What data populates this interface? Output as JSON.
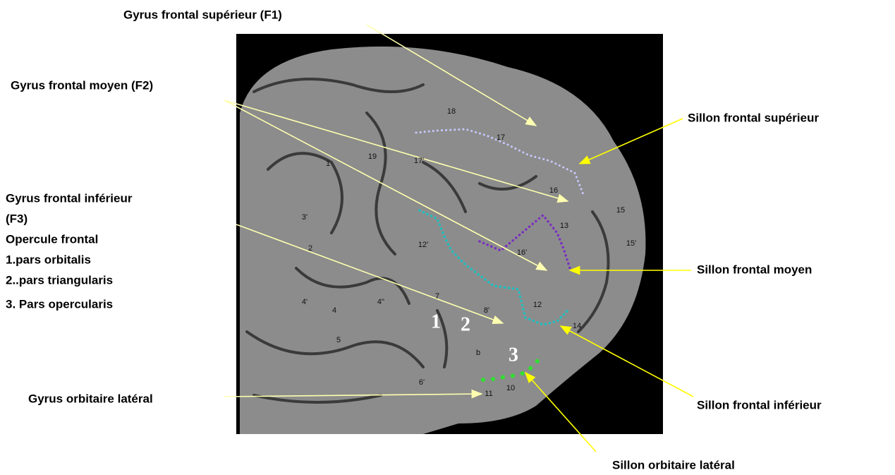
{
  "labels": {
    "f1": "Gyrus frontal supérieur (F1)",
    "f2": "Gyrus frontal moyen (F2)",
    "f3": [
      "Gyrus frontal inférieur",
      "(F3)",
      "Opercule frontal",
      "1.pars orbitalis",
      "2..pars triangularis",
      "3. Pars opercularis"
    ],
    "orbital_gyrus": "Gyrus orbitaire latéral",
    "sfs": "Sillon frontal supérieur",
    "sfm": "Sillon frontal moyen",
    "sfi": "Sillon frontal inférieur",
    "sol": "Sillon orbitaire latéral"
  },
  "photo_labels": [
    "18",
    "17",
    "19",
    "1",
    "17'",
    "3'",
    "2",
    "12'",
    "16",
    "15",
    "13",
    "15'",
    "16'",
    "12",
    "7",
    "8'",
    "4'",
    "4",
    "4''",
    "5",
    "14",
    "b",
    "6'",
    "11",
    "10"
  ],
  "photo_big_labels": [
    "1",
    "2",
    "3"
  ]
}
